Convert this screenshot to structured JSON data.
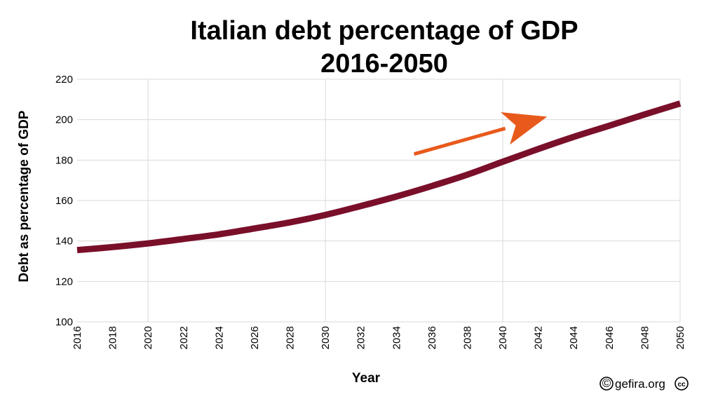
{
  "chart_data": {
    "type": "line",
    "title": [
      "Italian debt percentage of GDP",
      "2016-2050"
    ],
    "xlabel": "Year",
    "ylabel": "Debt as percentage of GDP",
    "xlim": [
      2016,
      2050
    ],
    "ylim": [
      100,
      220
    ],
    "x_ticks": [
      "2016",
      "2018",
      "2020",
      "2022",
      "2024",
      "2026",
      "2028",
      "2030",
      "2032",
      "2034",
      "2036",
      "2038",
      "2040",
      "2042",
      "2044",
      "2046",
      "2048",
      "2050"
    ],
    "y_ticks": [
      "100",
      "120",
      "140",
      "160",
      "180",
      "200",
      "220"
    ],
    "grid": true,
    "series": [
      {
        "color": "#7a0f2a",
        "x": [
          2016,
          2018,
          2020,
          2022,
          2024,
          2026,
          2028,
          2030,
          2032,
          2034,
          2036,
          2038,
          2040,
          2042,
          2044,
          2046,
          2048,
          2050
        ],
        "values": [
          135.5,
          137,
          138.8,
          141,
          143.3,
          146.2,
          149.2,
          152.9,
          157.3,
          162,
          167.2,
          172.8,
          179.2,
          185.5,
          191.5,
          197,
          202.6,
          208
        ]
      }
    ],
    "annotations": [
      {
        "type": "arrow",
        "color": "#e85a1c",
        "from": [
          2035,
          183
        ],
        "to": [
          2042.5,
          201.5
        ]
      }
    ]
  },
  "credit": {
    "text": "gefira.org",
    "copyright_symbol": "©",
    "cc_symbol": "cc"
  }
}
